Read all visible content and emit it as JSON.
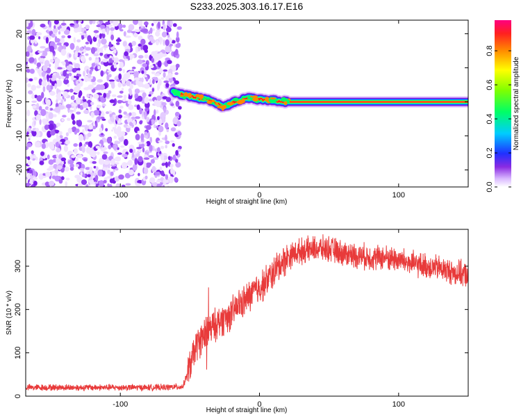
{
  "chart_data": [
    {
      "type": "heatmap",
      "title": "S233.2025.303.16.17.E16",
      "xlabel": "Height of straight line (km)",
      "ylabel": "Frequency (Hz)",
      "xlim": [
        -168,
        150
      ],
      "ylim": [
        -25,
        24
      ],
      "xticks": [
        -100,
        0,
        100
      ],
      "xtick_labels": [
        "-100",
        "0",
        "100"
      ],
      "yticks": [
        -20,
        -10,
        0,
        10,
        20
      ],
      "ytick_labels": [
        "-20",
        "-10",
        "0",
        "10",
        "20"
      ],
      "colorbar": {
        "label": "Normalized spectral amplitude",
        "range": [
          0,
          0.98
        ],
        "ticks": [
          0.0,
          0.2,
          0.4,
          0.6,
          0.8
        ],
        "tick_labels": [
          "0.0",
          "0.2",
          "0.4",
          "0.6",
          "0.8"
        ]
      },
      "noise_region_x": [
        -168,
        -60
      ],
      "ridge": {
        "x": [
          -62,
          -55,
          -48,
          -40,
          -32,
          -26,
          -22,
          -18,
          -14,
          -10,
          -6,
          -2,
          5,
          10,
          20,
          40,
          60,
          80,
          100,
          120,
          150
        ],
        "y": [
          3.0,
          2.0,
          1.5,
          0.8,
          0.0,
          -1.5,
          -0.8,
          0.0,
          0.5,
          1.0,
          1.3,
          0.8,
          0.6,
          0.4,
          0.0,
          0.0,
          0.0,
          0.0,
          0.0,
          0.0,
          0.0
        ]
      }
    },
    {
      "type": "line",
      "title": "",
      "xlabel": "Height of straight line (km)",
      "ylabel": "SNR (10 * v/v)",
      "xlim": [
        -168,
        150
      ],
      "ylim": [
        0,
        385
      ],
      "xticks": [
        -100,
        0,
        100
      ],
      "xtick_labels": [
        "-100",
        "0",
        "100"
      ],
      "yticks": [
        0,
        100,
        200,
        300
      ],
      "ytick_labels": [
        "0",
        "100",
        "200",
        "300"
      ],
      "series": [
        {
          "name": "SNR",
          "color": "#e83a3a",
          "x": [
            -168,
            -150,
            -130,
            -110,
            -90,
            -70,
            -55,
            -50,
            -45,
            -40,
            -36,
            -33,
            -30,
            -25,
            -20,
            -15,
            -10,
            -5,
            0,
            5,
            10,
            15,
            20,
            25,
            30,
            40,
            50,
            60,
            70,
            80,
            90,
            100,
            110,
            120,
            130,
            140,
            150
          ],
          "values": [
            20,
            20,
            20,
            20,
            20,
            20,
            22,
            70,
            120,
            140,
            150,
            160,
            170,
            180,
            190,
            210,
            220,
            240,
            250,
            265,
            285,
            305,
            320,
            330,
            335,
            340,
            340,
            330,
            325,
            320,
            320,
            315,
            305,
            300,
            295,
            285,
            280
          ]
        }
      ]
    }
  ]
}
